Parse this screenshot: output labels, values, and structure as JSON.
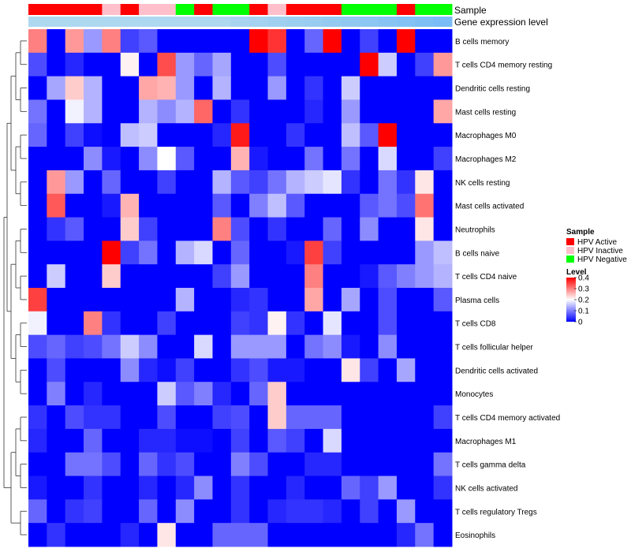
{
  "chart_data": {
    "type": "heatmap",
    "annotation_labels": {
      "sample": "Sample",
      "gene": "Gene expression level"
    },
    "legend": {
      "sample_title": "Sample",
      "sample_entries": [
        {
          "name": "HPV Active",
          "color": "#ff0000"
        },
        {
          "name": "HPV Inactive",
          "color": "#ffc0cb"
        },
        {
          "name": "HPV Negative",
          "color": "#00ff00"
        }
      ],
      "level_title": "Level",
      "level_ticks": [
        "0.4",
        "0.3",
        "0.2",
        "0.1",
        "0"
      ],
      "level_tick_values": [
        0.4,
        0.3,
        0.2,
        0.1,
        0
      ],
      "color_low": "#0000ff",
      "color_mid": "#ffffff",
      "color_high": "#ff0000",
      "value_range": [
        0,
        0.4
      ]
    },
    "sample_groups": [
      "A",
      "A",
      "A",
      "A",
      "I",
      "A",
      "I",
      "I",
      "N",
      "A",
      "N",
      "N",
      "A",
      "I",
      "A",
      "A",
      "A",
      "N",
      "N",
      "N",
      "A",
      "N",
      "N"
    ],
    "gene_expression_colors": [
      "#aed8f0",
      "#aed8f0",
      "#aed8f0",
      "#aed8f0",
      "#aed8f0",
      "#aed8f0",
      "#aed8f0",
      "#aed8f0",
      "#aed8f0",
      "#aed8f0",
      "#aed8f0",
      "#a8d4f0",
      "#a4d2f0",
      "#a0d0f0",
      "#9ccef0",
      "#98ccf0",
      "#94caf0",
      "#90c8f0",
      "#8cc6f2",
      "#88c4f2",
      "#82c2f4",
      "#7ebff4",
      "#7abdf6"
    ],
    "rows": [
      "B cells memory",
      "T cells CD4 memory resting",
      "Dendritic cells resting",
      "Mast cells resting",
      "Macrophages M0",
      "Macrophages M2",
      "NK cells resting",
      "Mast cells activated",
      "Neutrophils",
      "B cells naive",
      "T cells CD4 naive",
      "Plasma cells",
      "T cells CD8",
      "T cells follicular helper",
      "Dendritic cells activated",
      "Monocytes",
      "T cells CD4 memory activated",
      "Macrophages M1",
      "T cells gamma delta",
      "NK cells activated",
      "T cells regulatory  Tregs",
      "Eosinophils"
    ],
    "values": [
      [
        0.3,
        0.0,
        0.28,
        0.12,
        0.3,
        0.05,
        0.07,
        0.0,
        0.0,
        0.0,
        0.0,
        0.0,
        0.4,
        0.36,
        0.0,
        0.08,
        0.4,
        0.0,
        0.05,
        0.0,
        0.4,
        0.0,
        0.0
      ],
      [
        0.06,
        0.0,
        0.03,
        0.0,
        0.0,
        0.21,
        0.0,
        0.34,
        0.12,
        0.08,
        0.13,
        0.0,
        0.0,
        0.06,
        0.0,
        0.0,
        0.0,
        0.0,
        0.4,
        0.16,
        0.0,
        0.05,
        0.28
      ],
      [
        0.0,
        0.13,
        0.24,
        0.14,
        0.0,
        0.0,
        0.27,
        0.26,
        0.12,
        0.0,
        0.14,
        0.0,
        0.0,
        0.12,
        0.0,
        0.04,
        0.0,
        0.16,
        0.0,
        0.0,
        0.0,
        0.0,
        0.0
      ],
      [
        0.09,
        0.0,
        0.19,
        0.14,
        0.0,
        0.0,
        0.14,
        0.11,
        0.14,
        0.32,
        0.0,
        0.04,
        0.0,
        0.0,
        0.0,
        0.03,
        0.0,
        0.12,
        0.0,
        0.0,
        0.0,
        0.0,
        0.27
      ],
      [
        0.08,
        0.0,
        0.05,
        0.01,
        0.0,
        0.15,
        0.16,
        0.0,
        0.0,
        0.0,
        0.03,
        0.38,
        0.0,
        0.0,
        0.04,
        0.0,
        0.0,
        0.15,
        0.07,
        0.4,
        0.0,
        0.0,
        0.0
      ],
      [
        0.0,
        0.0,
        0.0,
        0.11,
        0.02,
        0.0,
        0.11,
        0.2,
        0.07,
        0.0,
        0.0,
        0.26,
        0.02,
        0.0,
        0.0,
        0.09,
        0.0,
        0.09,
        0.0,
        0.17,
        0.0,
        0.0,
        0.05
      ],
      [
        0.0,
        0.28,
        0.12,
        0.0,
        0.08,
        0.0,
        0.0,
        0.05,
        0.0,
        0.0,
        0.14,
        0.07,
        0.05,
        0.09,
        0.14,
        0.16,
        0.18,
        0.04,
        0.0,
        0.09,
        0.04,
        0.22,
        0.0
      ],
      [
        0.0,
        0.33,
        0.0,
        0.0,
        0.02,
        0.26,
        0.0,
        0.0,
        0.0,
        0.0,
        0.07,
        0.0,
        0.1,
        0.15,
        0.07,
        0.0,
        0.0,
        0.0,
        0.07,
        0.09,
        0.06,
        0.31,
        0.0
      ],
      [
        0.0,
        0.04,
        0.07,
        0.0,
        0.0,
        0.24,
        0.05,
        0.0,
        0.0,
        0.0,
        0.3,
        0.06,
        0.0,
        0.04,
        0.0,
        0.0,
        0.08,
        0.0,
        0.11,
        0.0,
        0.0,
        0.22,
        0.0
      ],
      [
        0.0,
        0.0,
        0.0,
        0.0,
        0.4,
        0.05,
        0.09,
        0.0,
        0.14,
        0.17,
        0.0,
        0.08,
        0.0,
        0.0,
        0.02,
        0.35,
        0.05,
        0.0,
        0.0,
        0.0,
        0.0,
        0.12,
        0.15
      ],
      [
        0.0,
        0.16,
        0.0,
        0.0,
        0.24,
        0.0,
        0.0,
        0.0,
        0.0,
        0.0,
        0.05,
        0.12,
        0.0,
        0.0,
        0.0,
        0.3,
        0.0,
        0.0,
        0.02,
        0.07,
        0.1,
        0.12,
        0.14
      ],
      [
        0.35,
        0.0,
        0.0,
        0.0,
        0.0,
        0.0,
        0.0,
        0.0,
        0.14,
        0.0,
        0.0,
        0.03,
        0.04,
        0.0,
        0.0,
        0.27,
        0.0,
        0.13,
        0.0,
        0.06,
        0.0,
        0.0,
        0.07
      ],
      [
        0.19,
        0.0,
        0.0,
        0.3,
        0.04,
        0.0,
        0.0,
        0.05,
        0.0,
        0.0,
        0.0,
        0.05,
        0.04,
        0.21,
        0.04,
        0.0,
        0.18,
        0.0,
        0.0,
        0.06,
        0.0,
        0.0,
        0.0
      ],
      [
        0.06,
        0.08,
        0.05,
        0.06,
        0.09,
        0.16,
        0.11,
        0.0,
        0.0,
        0.17,
        0.0,
        0.12,
        0.12,
        0.12,
        0.0,
        0.09,
        0.11,
        0.02,
        0.0,
        0.11,
        0.0,
        0.0,
        0.0
      ],
      [
        0.0,
        0.06,
        0.0,
        0.0,
        0.0,
        0.11,
        0.03,
        0.01,
        0.05,
        0.0,
        0.0,
        0.04,
        0.06,
        0.02,
        0.02,
        0.0,
        0.0,
        0.22,
        0.05,
        0.0,
        0.13,
        0.0,
        0.0
      ],
      [
        0.0,
        0.1,
        0.0,
        0.03,
        0.0,
        0.0,
        0.0,
        0.16,
        0.07,
        0.1,
        0.03,
        0.0,
        0.08,
        0.24,
        0.0,
        0.0,
        0.0,
        0.0,
        0.0,
        0.0,
        0.0,
        0.0,
        0.0
      ],
      [
        0.04,
        0.0,
        0.06,
        0.04,
        0.04,
        0.0,
        0.0,
        0.06,
        0.0,
        0.0,
        0.05,
        0.06,
        0.0,
        0.24,
        0.08,
        0.08,
        0.08,
        0.0,
        0.0,
        0.0,
        0.0,
        0.0,
        0.05
      ],
      [
        0.03,
        0.0,
        0.0,
        0.08,
        0.0,
        0.0,
        0.03,
        0.03,
        0.01,
        0.01,
        0.0,
        0.05,
        0.0,
        0.07,
        0.05,
        0.0,
        0.17,
        0.0,
        0.0,
        0.0,
        0.0,
        0.0,
        0.0
      ],
      [
        0.0,
        0.0,
        0.09,
        0.09,
        0.06,
        0.0,
        0.08,
        0.04,
        0.06,
        0.0,
        0.0,
        0.1,
        0.06,
        0.0,
        0.0,
        0.03,
        0.03,
        0.0,
        0.0,
        0.0,
        0.0,
        0.0,
        0.09
      ],
      [
        0.02,
        0.0,
        0.0,
        0.04,
        0.0,
        0.0,
        0.03,
        0.0,
        0.03,
        0.11,
        0.0,
        0.04,
        0.0,
        0.0,
        0.03,
        0.0,
        0.0,
        0.08,
        0.05,
        0.12,
        0.0,
        0.0,
        0.04
      ],
      [
        0.08,
        0.0,
        0.04,
        0.05,
        0.0,
        0.0,
        0.08,
        0.0,
        0.11,
        0.0,
        0.0,
        0.04,
        0.0,
        0.03,
        0.04,
        0.04,
        0.03,
        0.0,
        0.05,
        0.0,
        0.12,
        0.0,
        0.0
      ],
      [
        0.0,
        0.04,
        0.0,
        0.0,
        0.0,
        0.03,
        0.0,
        0.22,
        0.0,
        0.0,
        0.08,
        0.08,
        0.08,
        0.0,
        0.0,
        0.0,
        0.0,
        0.0,
        0.0,
        0.0,
        0.03,
        0.09,
        0.0
      ]
    ],
    "row_order_note": "rows listed top to bottom; columns left to right"
  }
}
